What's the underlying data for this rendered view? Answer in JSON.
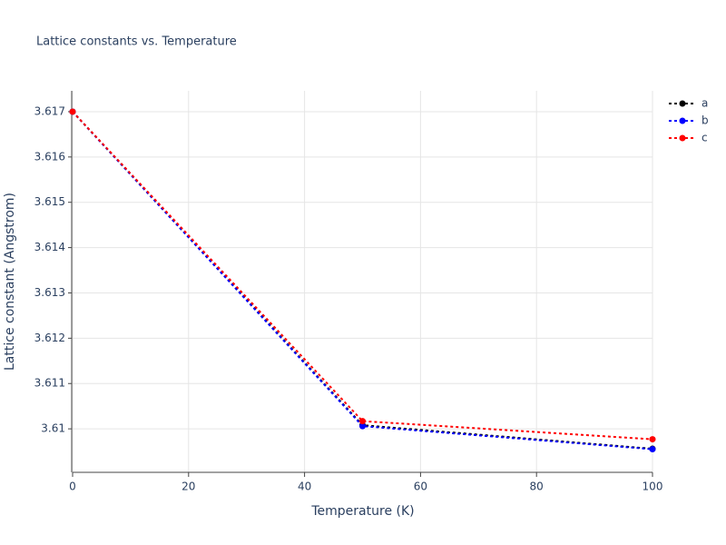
{
  "chart_data": {
    "type": "line",
    "title": "Lattice constants vs. Temperature",
    "x_label": "Temperature (K)",
    "y_label": "Lattice constant (Angstrom)",
    "x": [
      0,
      50,
      100
    ],
    "series": [
      {
        "name": "a",
        "color": "#000000",
        "values": [
          3.617,
          3.61008,
          3.60956
        ]
      },
      {
        "name": "b",
        "color": "#0000ff",
        "values": [
          3.617,
          3.61006,
          3.60955
        ]
      },
      {
        "name": "c",
        "color": "#ff0000",
        "values": [
          3.617,
          3.61017,
          3.60977
        ]
      }
    ],
    "xlim": [
      0,
      100
    ],
    "xticks": [
      0,
      20,
      40,
      60,
      80,
      100
    ],
    "ylim": [
      3.60904,
      3.61746
    ],
    "yticks": [
      3.61,
      3.611,
      3.612,
      3.613,
      3.614,
      3.615,
      3.616,
      3.617
    ],
    "grid": true,
    "legend": "right"
  }
}
